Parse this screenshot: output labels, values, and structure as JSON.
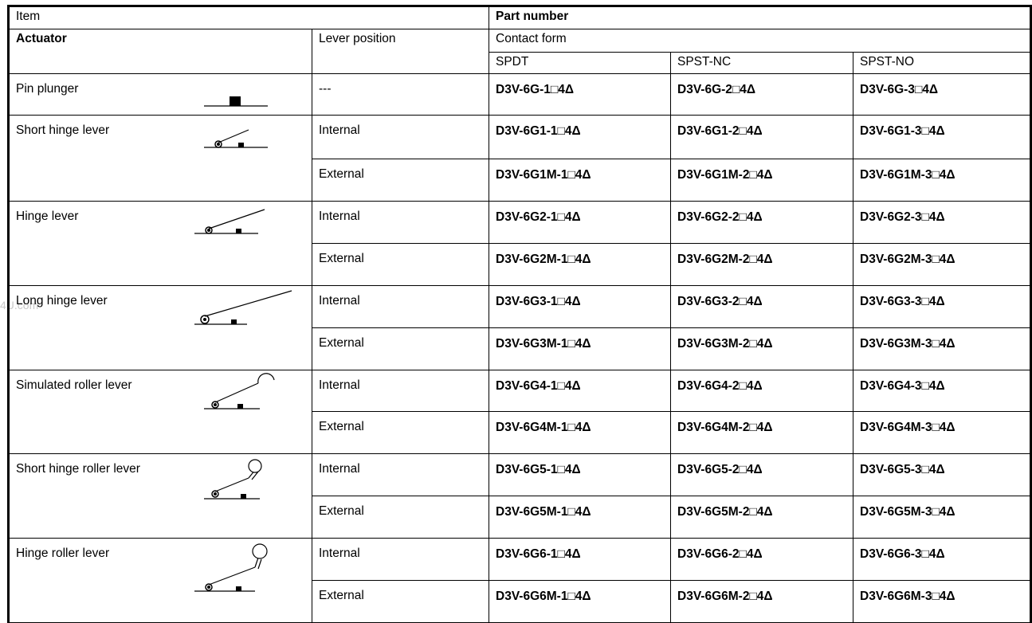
{
  "header": {
    "item": "Item",
    "part_number": "Part number",
    "actuator": "Actuator",
    "lever_position": "Lever position",
    "contact_form": "Contact form",
    "spdt": "SPDT",
    "spst_nc": "SPST-NC",
    "spst_no": "SPST-NO"
  },
  "rows": [
    {
      "actuator": "Pin plunger",
      "icon": "pin-plunger-icon",
      "positions": [
        {
          "lever": "---",
          "spdt": "D3V-6G-1□4Δ",
          "nc": "D3V-6G-2□4Δ",
          "no": "D3V-6G-3□4Δ"
        }
      ]
    },
    {
      "actuator": "Short hinge lever",
      "icon": "short-hinge-lever-icon",
      "positions": [
        {
          "lever": "Internal",
          "spdt": "D3V-6G1-1□4Δ",
          "nc": "D3V-6G1-2□4Δ",
          "no": "D3V-6G1-3□4Δ"
        },
        {
          "lever": "External",
          "spdt": "D3V-6G1M-1□4Δ",
          "nc": "D3V-6G1M-2□4Δ",
          "no": "D3V-6G1M-3□4Δ"
        }
      ]
    },
    {
      "actuator": "Hinge lever",
      "icon": "hinge-lever-icon",
      "positions": [
        {
          "lever": "Internal",
          "spdt": "D3V-6G2-1□4Δ",
          "nc": "D3V-6G2-2□4Δ",
          "no": "D3V-6G2-3□4Δ"
        },
        {
          "lever": "External",
          "spdt": "D3V-6G2M-1□4Δ",
          "nc": "D3V-6G2M-2□4Δ",
          "no": "D3V-6G2M-3□4Δ"
        }
      ]
    },
    {
      "actuator": "Long hinge lever",
      "icon": "long-hinge-lever-icon",
      "positions": [
        {
          "lever": "Internal",
          "spdt": "D3V-6G3-1□4Δ",
          "nc": "D3V-6G3-2□4Δ",
          "no": "D3V-6G3-3□4Δ"
        },
        {
          "lever": "External",
          "spdt": "D3V-6G3M-1□4Δ",
          "nc": "D3V-6G3M-2□4Δ",
          "no": "D3V-6G3M-3□4Δ"
        }
      ]
    },
    {
      "actuator": "Simulated roller lever",
      "icon": "simulated-roller-lever-icon",
      "positions": [
        {
          "lever": "Internal",
          "spdt": "D3V-6G4-1□4Δ",
          "nc": "D3V-6G4-2□4Δ",
          "no": "D3V-6G4-3□4Δ"
        },
        {
          "lever": "External",
          "spdt": "D3V-6G4M-1□4Δ",
          "nc": "D3V-6G4M-2□4Δ",
          "no": "D3V-6G4M-3□4Δ"
        }
      ]
    },
    {
      "actuator": "Short hinge roller lever",
      "icon": "short-hinge-roller-lever-icon",
      "positions": [
        {
          "lever": "Internal",
          "spdt": "D3V-6G5-1□4Δ",
          "nc": "D3V-6G5-2□4Δ",
          "no": "D3V-6G5-3□4Δ"
        },
        {
          "lever": "External",
          "spdt": "D3V-6G5M-1□4Δ",
          "nc": "D3V-6G5M-2□4Δ",
          "no": "D3V-6G5M-3□4Δ"
        }
      ]
    },
    {
      "actuator": "Hinge roller lever",
      "icon": "hinge-roller-lever-icon",
      "positions": [
        {
          "lever": "Internal",
          "spdt": "D3V-6G6-1□4Δ",
          "nc": "D3V-6G6-2□4Δ",
          "no": "D3V-6G6-3□4Δ"
        },
        {
          "lever": "External",
          "spdt": "D3V-6G6M-1□4Δ",
          "nc": "D3V-6G6M-2□4Δ",
          "no": "D3V-6G6M-3□4Δ"
        }
      ]
    }
  ],
  "watermark": "4U.com"
}
